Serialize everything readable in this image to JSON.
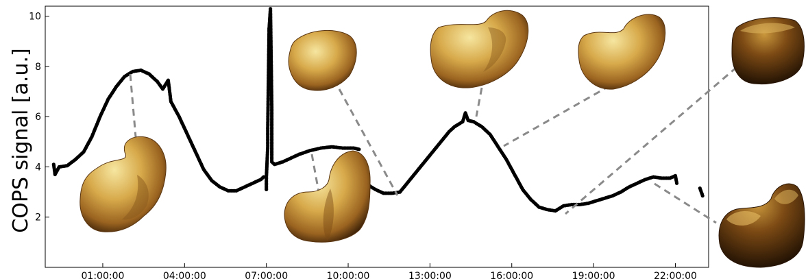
{
  "chart_data": {
    "type": "scatter",
    "title": "",
    "xlabel": "",
    "ylabel": "COPS signal [a.u.]",
    "x_unit": "hours",
    "xlim": [
      -1.11,
      23.22
    ],
    "ylim": [
      0,
      10.4
    ],
    "grid": false,
    "x_ticks": [
      {
        "value": 1,
        "label": "01:00:00"
      },
      {
        "value": 4,
        "label": "04:00:00"
      },
      {
        "value": 7,
        "label": "07:00:00"
      },
      {
        "value": 10,
        "label": "10:00:00"
      },
      {
        "value": 13,
        "label": "13:00:00"
      },
      {
        "value": 16,
        "label": "16:00:00"
      },
      {
        "value": 19,
        "label": "19:00:00"
      },
      {
        "value": 22,
        "label": "22:00:00"
      }
    ],
    "y_ticks": [
      {
        "value": 2,
        "label": "2"
      },
      {
        "value": 4,
        "label": "4"
      },
      {
        "value": 6,
        "label": "6"
      },
      {
        "value": 8,
        "label": "8"
      },
      {
        "value": 10,
        "label": "10"
      }
    ],
    "series_color": "#000000",
    "segments": [
      {
        "points": [
          [
            -0.8,
            4.1
          ],
          [
            -0.75,
            3.7
          ],
          [
            -0.6,
            4.0
          ],
          [
            -0.3,
            4.05
          ],
          [
            0.0,
            4.3
          ],
          [
            0.3,
            4.6
          ],
          [
            0.6,
            5.2
          ],
          [
            0.9,
            6.0
          ],
          [
            1.2,
            6.7
          ],
          [
            1.5,
            7.2
          ],
          [
            1.8,
            7.6
          ],
          [
            2.1,
            7.8
          ],
          [
            2.4,
            7.85
          ],
          [
            2.7,
            7.7
          ],
          [
            3.0,
            7.4
          ],
          [
            3.2,
            7.1
          ],
          [
            3.4,
            7.45
          ],
          [
            3.5,
            6.6
          ],
          [
            3.8,
            6.0
          ],
          [
            4.1,
            5.3
          ],
          [
            4.4,
            4.6
          ],
          [
            4.7,
            3.9
          ],
          [
            5.0,
            3.45
          ],
          [
            5.3,
            3.2
          ],
          [
            5.6,
            3.05
          ],
          [
            5.9,
            3.05
          ],
          [
            6.2,
            3.2
          ],
          [
            6.5,
            3.35
          ],
          [
            6.8,
            3.5
          ],
          [
            6.9,
            3.6
          ]
        ]
      },
      {
        "points": [
          [
            7.0,
            3.1
          ],
          [
            7.0,
            3.6
          ],
          [
            7.05,
            4.8
          ],
          [
            7.05,
            5.4
          ],
          [
            7.1,
            9.5
          ],
          [
            7.15,
            10.3
          ],
          [
            7.2,
            6.3
          ],
          [
            7.2,
            4.2
          ],
          [
            7.3,
            4.1
          ],
          [
            7.6,
            4.2
          ],
          [
            7.9,
            4.35
          ],
          [
            8.2,
            4.5
          ],
          [
            8.6,
            4.65
          ],
          [
            9.0,
            4.75
          ],
          [
            9.4,
            4.8
          ],
          [
            9.8,
            4.75
          ],
          [
            10.2,
            4.75
          ],
          [
            10.4,
            4.7
          ]
        ]
      },
      {
        "points": [
          [
            10.65,
            3.8
          ],
          [
            10.7,
            3.3
          ],
          [
            11.0,
            3.1
          ],
          [
            11.3,
            2.95
          ],
          [
            11.6,
            2.95
          ],
          [
            11.9,
            3.0
          ],
          [
            12.2,
            3.4
          ],
          [
            12.5,
            3.8
          ],
          [
            12.8,
            4.2
          ],
          [
            13.1,
            4.6
          ],
          [
            13.4,
            5.0
          ],
          [
            13.7,
            5.4
          ],
          [
            13.9,
            5.6
          ],
          [
            14.2,
            5.8
          ],
          [
            14.3,
            6.15
          ],
          [
            14.4,
            5.85
          ],
          [
            14.6,
            5.8
          ],
          [
            14.9,
            5.6
          ],
          [
            15.2,
            5.3
          ],
          [
            15.5,
            4.8
          ],
          [
            15.8,
            4.3
          ],
          [
            16.1,
            3.7
          ],
          [
            16.4,
            3.1
          ],
          [
            16.7,
            2.7
          ],
          [
            17.0,
            2.4
          ],
          [
            17.3,
            2.3
          ],
          [
            17.6,
            2.25
          ],
          [
            17.9,
            2.45
          ],
          [
            18.2,
            2.5
          ],
          [
            18.5,
            2.5
          ],
          [
            18.8,
            2.55
          ],
          [
            19.1,
            2.65
          ],
          [
            19.4,
            2.75
          ],
          [
            19.7,
            2.85
          ],
          [
            20.0,
            3.0
          ],
          [
            20.3,
            3.2
          ],
          [
            20.6,
            3.35
          ],
          [
            20.9,
            3.5
          ],
          [
            21.2,
            3.6
          ],
          [
            21.5,
            3.55
          ],
          [
            21.8,
            3.55
          ],
          [
            22.0,
            3.65
          ],
          [
            22.05,
            3.35
          ]
        ]
      },
      {
        "points": [
          [
            22.9,
            3.15
          ],
          [
            23.0,
            2.85
          ]
        ]
      }
    ]
  }
}
